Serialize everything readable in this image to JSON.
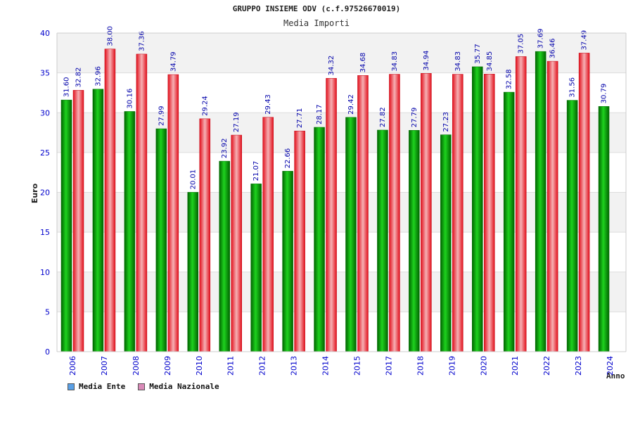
{
  "chart_data": {
    "type": "bar",
    "title": "GRUPPO INSIEME ODV (c.f.97526670019)",
    "subtitle": "Media Importi",
    "xlabel": "Anno",
    "ylabel": "Euro",
    "ylim": [
      0,
      40
    ],
    "yticks": [
      0,
      5,
      10,
      15,
      20,
      25,
      30,
      35,
      40
    ],
    "grid": true,
    "legend_position": "bottom-left",
    "categories": [
      "2006",
      "2007",
      "2008",
      "2009",
      "2010",
      "2011",
      "2012",
      "2013",
      "2014",
      "2015",
      "2017",
      "2018",
      "2019",
      "2020",
      "2021",
      "2022",
      "2023",
      "2024"
    ],
    "series": [
      {
        "name": "Media Ente",
        "color": "#0aa00a",
        "legend_color": "#5aa0e6",
        "values": [
          31.6,
          32.96,
          30.16,
          27.99,
          20.01,
          23.92,
          21.07,
          22.66,
          28.17,
          29.42,
          27.82,
          27.79,
          27.23,
          35.77,
          32.58,
          37.69,
          31.56,
          30.79
        ],
        "labels": [
          "31.60",
          "32.96",
          "30.16",
          "27.99",
          "20.01",
          "23.92",
          "21.07",
          "22.66",
          "28.17",
          "29.42",
          "27.82",
          "27.79",
          "27.23",
          "35.77",
          "32.58",
          "37.69",
          "31.56",
          "30.79"
        ]
      },
      {
        "name": "Media Nazionale",
        "color": "#e8141e",
        "legend_color": "#d98ab8",
        "values": [
          32.82,
          38.0,
          37.36,
          34.79,
          29.24,
          27.19,
          29.43,
          27.71,
          34.32,
          34.68,
          34.83,
          34.94,
          34.83,
          34.85,
          37.05,
          36.46,
          37.49,
          null
        ],
        "labels": [
          "32.82",
          "38.00",
          "37.36",
          "34.79",
          "29.24",
          "27.19",
          "29.43",
          "27.71",
          "34.32",
          "34.68",
          "34.83",
          "34.94",
          "34.83",
          "34.85",
          "37.05",
          "36.46",
          "37.49",
          ""
        ]
      }
    ]
  }
}
